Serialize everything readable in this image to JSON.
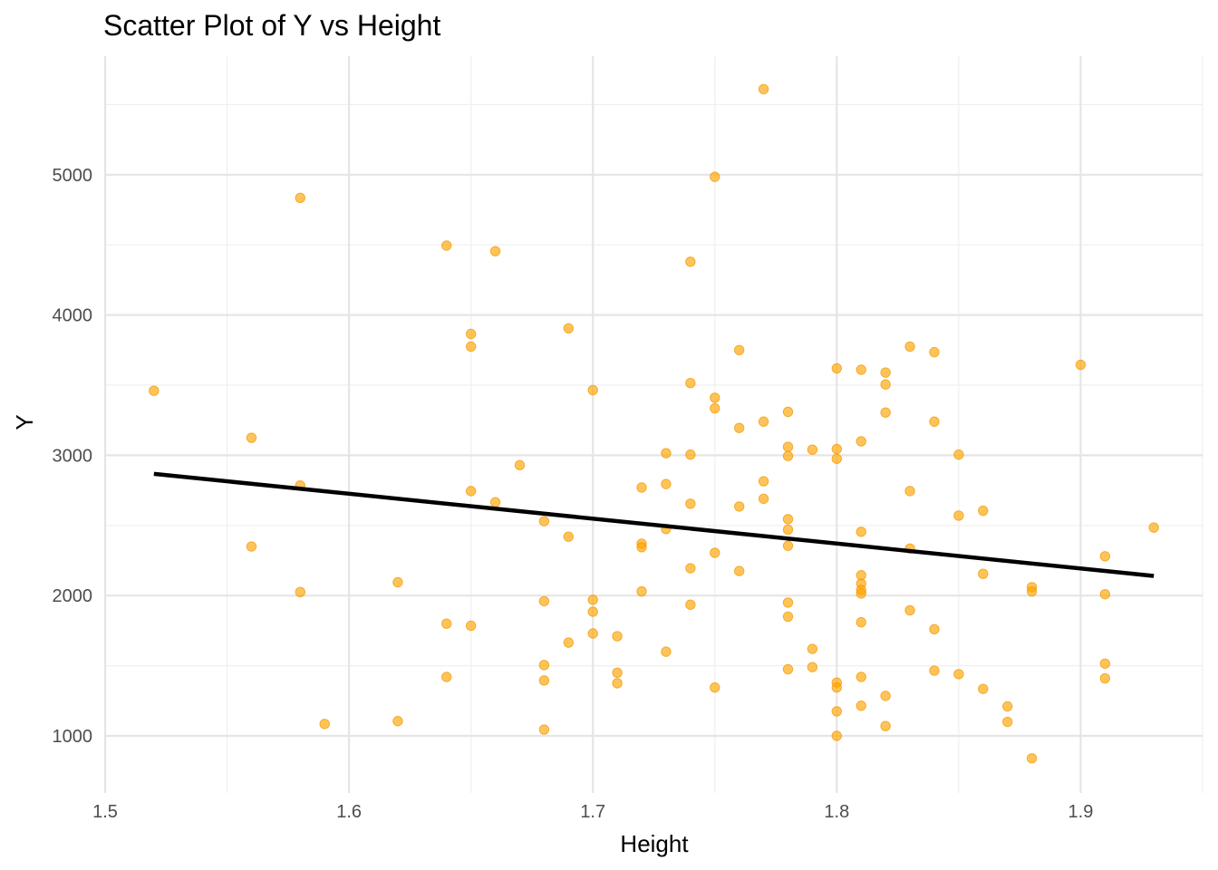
{
  "chart_data": {
    "type": "scatter",
    "title": "Scatter Plot of Y vs Height",
    "xlabel": "Height",
    "ylabel": "Y",
    "xlim": [
      1.5,
      1.95
    ],
    "ylim": [
      640,
      5650
    ],
    "x_ticks": [
      1.5,
      1.6,
      1.7,
      1.8,
      1.9
    ],
    "x_tick_labels": [
      "1.5",
      "1.6",
      "1.7",
      "1.8",
      "1.9"
    ],
    "y_ticks": [
      1000,
      2000,
      3000,
      4000,
      5000
    ],
    "y_tick_labels": [
      "1000",
      "2000",
      "3000",
      "4000",
      "5000"
    ],
    "grid": true,
    "point_color": "#FFA500",
    "line_color": "#000000",
    "series": [
      {
        "type": "scatter",
        "points": [
          [
            1.52,
            3460
          ],
          [
            1.56,
            3125
          ],
          [
            1.56,
            2350
          ],
          [
            1.58,
            4835
          ],
          [
            1.58,
            2785
          ],
          [
            1.58,
            2025
          ],
          [
            1.59,
            1085
          ],
          [
            1.62,
            2095
          ],
          [
            1.62,
            1105
          ],
          [
            1.64,
            4495
          ],
          [
            1.64,
            1800
          ],
          [
            1.64,
            1420
          ],
          [
            1.65,
            3865
          ],
          [
            1.65,
            3775
          ],
          [
            1.65,
            2745
          ],
          [
            1.65,
            1785
          ],
          [
            1.66,
            4455
          ],
          [
            1.66,
            2665
          ],
          [
            1.67,
            2930
          ],
          [
            1.68,
            2530
          ],
          [
            1.68,
            1960
          ],
          [
            1.68,
            1505
          ],
          [
            1.68,
            1395
          ],
          [
            1.68,
            1045
          ],
          [
            1.69,
            3905
          ],
          [
            1.69,
            2420
          ],
          [
            1.69,
            1665
          ],
          [
            1.7,
            3465
          ],
          [
            1.7,
            1970
          ],
          [
            1.7,
            1885
          ],
          [
            1.7,
            1730
          ],
          [
            1.71,
            1710
          ],
          [
            1.71,
            1450
          ],
          [
            1.71,
            1375
          ],
          [
            1.72,
            2770
          ],
          [
            1.72,
            2370
          ],
          [
            1.72,
            2345
          ],
          [
            1.72,
            2030
          ],
          [
            1.73,
            3015
          ],
          [
            1.73,
            2795
          ],
          [
            1.73,
            2475
          ],
          [
            1.73,
            1600
          ],
          [
            1.74,
            4380
          ],
          [
            1.74,
            3515
          ],
          [
            1.74,
            3005
          ],
          [
            1.74,
            2655
          ],
          [
            1.74,
            2195
          ],
          [
            1.74,
            1935
          ],
          [
            1.75,
            4985
          ],
          [
            1.75,
            3410
          ],
          [
            1.75,
            3335
          ],
          [
            1.75,
            2305
          ],
          [
            1.75,
            1345
          ],
          [
            1.76,
            3750
          ],
          [
            1.76,
            3195
          ],
          [
            1.76,
            2635
          ],
          [
            1.76,
            2175
          ],
          [
            1.77,
            5610
          ],
          [
            1.77,
            3240
          ],
          [
            1.77,
            2815
          ],
          [
            1.77,
            2690
          ],
          [
            1.78,
            3310
          ],
          [
            1.78,
            3060
          ],
          [
            1.78,
            2995
          ],
          [
            1.78,
            2545
          ],
          [
            1.78,
            2470
          ],
          [
            1.78,
            2355
          ],
          [
            1.78,
            1950
          ],
          [
            1.78,
            1850
          ],
          [
            1.78,
            1475
          ],
          [
            1.79,
            3040
          ],
          [
            1.79,
            1620
          ],
          [
            1.79,
            1490
          ],
          [
            1.8,
            3620
          ],
          [
            1.8,
            3045
          ],
          [
            1.8,
            2975
          ],
          [
            1.8,
            1380
          ],
          [
            1.8,
            1345
          ],
          [
            1.8,
            1175
          ],
          [
            1.8,
            1000
          ],
          [
            1.81,
            3610
          ],
          [
            1.81,
            3100
          ],
          [
            1.81,
            2455
          ],
          [
            1.81,
            2145
          ],
          [
            1.81,
            2085
          ],
          [
            1.81,
            2040
          ],
          [
            1.81,
            2015
          ],
          [
            1.81,
            1810
          ],
          [
            1.81,
            1420
          ],
          [
            1.81,
            1215
          ],
          [
            1.82,
            3590
          ],
          [
            1.82,
            3505
          ],
          [
            1.82,
            3305
          ],
          [
            1.82,
            1285
          ],
          [
            1.82,
            1070
          ],
          [
            1.83,
            3775
          ],
          [
            1.83,
            2745
          ],
          [
            1.83,
            2335
          ],
          [
            1.83,
            1895
          ],
          [
            1.84,
            3735
          ],
          [
            1.84,
            3240
          ],
          [
            1.84,
            1760
          ],
          [
            1.84,
            1465
          ],
          [
            1.85,
            3005
          ],
          [
            1.85,
            2570
          ],
          [
            1.85,
            1440
          ],
          [
            1.86,
            2605
          ],
          [
            1.86,
            2155
          ],
          [
            1.86,
            1335
          ],
          [
            1.87,
            1210
          ],
          [
            1.87,
            1100
          ],
          [
            1.88,
            2060
          ],
          [
            1.88,
            2030
          ],
          [
            1.88,
            840
          ],
          [
            1.9,
            3645
          ],
          [
            1.91,
            2280
          ],
          [
            1.91,
            2010
          ],
          [
            1.91,
            1515
          ],
          [
            1.91,
            1410
          ],
          [
            1.93,
            2485
          ]
        ]
      },
      {
        "type": "line",
        "name": "",
        "x": [
          1.52,
          1.93
        ],
        "y": [
          2868,
          2140
        ]
      }
    ]
  }
}
